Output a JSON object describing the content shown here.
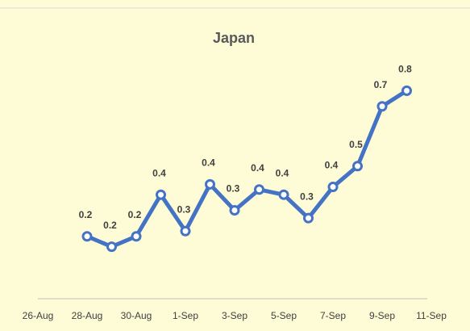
{
  "chart_data": {
    "type": "line",
    "title": "Japan",
    "categories": [
      "26-Aug",
      null,
      "28-Aug",
      null,
      "30-Aug",
      null,
      "1-Sep",
      null,
      "3-Sep",
      null,
      "5-Sep",
      null,
      "7-Sep",
      null,
      "9-Sep",
      null,
      "11-Sep"
    ],
    "series": [
      {
        "name": "Japan",
        "color": "#4472c4",
        "values": [
          null,
          null,
          0.24,
          0.2,
          0.24,
          0.4,
          0.26,
          0.44,
          0.34,
          0.42,
          0.4,
          0.31,
          0.43,
          0.51,
          0.74,
          0.8,
          null
        ],
        "value_labels": [
          null,
          null,
          "0.2",
          "0.2",
          "0.2",
          "0.4",
          "0.3",
          "0.4",
          "0.3",
          "0.4",
          "0.4",
          "0.3",
          "0.4",
          "0.5",
          "0.7",
          "0.8",
          null
        ]
      }
    ]
  }
}
